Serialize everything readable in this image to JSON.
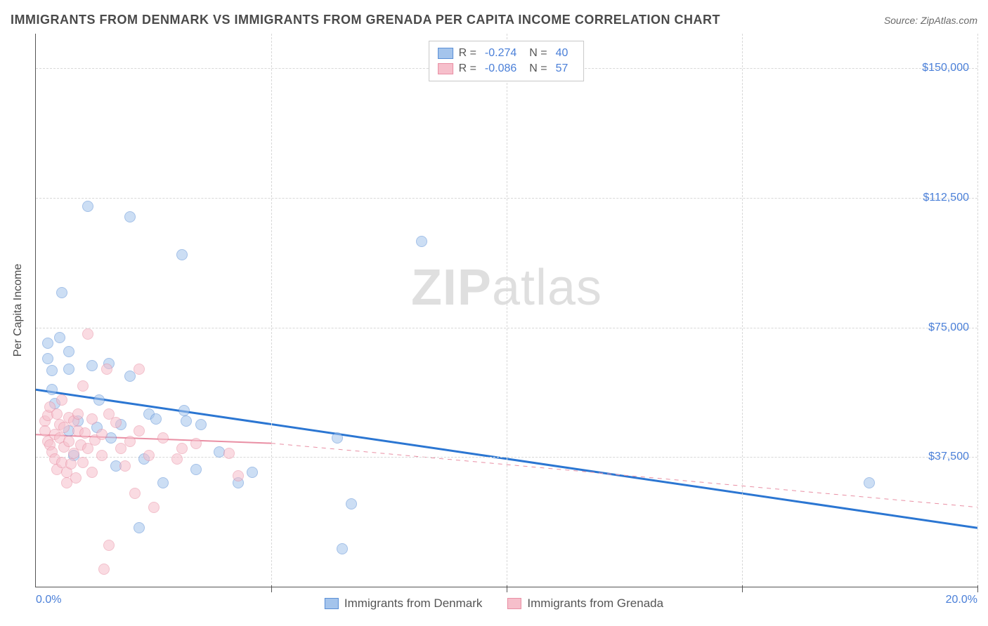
{
  "title": "IMMIGRANTS FROM DENMARK VS IMMIGRANTS FROM GRENADA PER CAPITA INCOME CORRELATION CHART",
  "source_label": "Source: ZipAtlas.com",
  "watermark": {
    "bold": "ZIP",
    "rest": "atlas"
  },
  "yaxis_title": "Per Capita Income",
  "chart": {
    "type": "scatter",
    "xlim": [
      0,
      20
    ],
    "ylim": [
      0,
      160000
    ],
    "x_tick_labels": {
      "left": "0.0%",
      "right": "20.0%"
    },
    "x_gridlines": [
      5,
      10,
      15,
      20
    ],
    "y_gridlines": [
      37500,
      75000,
      112500,
      150000
    ],
    "y_tick_labels": [
      "$37,500",
      "$75,000",
      "$112,500",
      "$150,000"
    ],
    "background_color": "#ffffff",
    "grid_color": "#d8d8d8",
    "axis_color": "#555555",
    "label_color": "#4a7fd8",
    "point_radius": 8,
    "point_opacity": 0.55,
    "series": [
      {
        "name": "Immigrants from Denmark",
        "fill_color": "#a4c4ec",
        "stroke_color": "#5b8fd6",
        "r_value": "-0.274",
        "n_value": "40",
        "trend": {
          "x1": 0,
          "y1": 57000,
          "x2": 20,
          "y2": 17000,
          "width": 3,
          "dash": "none",
          "color": "#2b76d2"
        },
        "points": [
          [
            0.25,
            70500
          ],
          [
            0.25,
            66000
          ],
          [
            0.35,
            62500
          ],
          [
            0.35,
            57000
          ],
          [
            0.4,
            53000
          ],
          [
            0.5,
            72000
          ],
          [
            0.55,
            85000
          ],
          [
            0.7,
            45000
          ],
          [
            0.7,
            63000
          ],
          [
            0.7,
            68000
          ],
          [
            0.8,
            38000
          ],
          [
            0.9,
            48000
          ],
          [
            1.1,
            110000
          ],
          [
            1.2,
            64000
          ],
          [
            1.3,
            46000
          ],
          [
            1.35,
            54000
          ],
          [
            1.55,
            64500
          ],
          [
            1.6,
            43000
          ],
          [
            1.7,
            35000
          ],
          [
            1.8,
            47000
          ],
          [
            2.0,
            107000
          ],
          [
            2.0,
            61000
          ],
          [
            2.2,
            17000
          ],
          [
            2.3,
            37000
          ],
          [
            2.4,
            50000
          ],
          [
            2.55,
            48500
          ],
          [
            2.7,
            30000
          ],
          [
            3.15,
            51000
          ],
          [
            3.1,
            96000
          ],
          [
            3.2,
            48000
          ],
          [
            3.4,
            34000
          ],
          [
            3.5,
            47000
          ],
          [
            3.9,
            39000
          ],
          [
            4.3,
            30000
          ],
          [
            4.6,
            33000
          ],
          [
            6.4,
            43000
          ],
          [
            6.5,
            11000
          ],
          [
            6.7,
            24000
          ],
          [
            8.2,
            100000
          ],
          [
            17.7,
            30000
          ]
        ]
      },
      {
        "name": "Immigrants from Grenada",
        "fill_color": "#f6bfcb",
        "stroke_color": "#e98fa4",
        "r_value": "-0.086",
        "n_value": "57",
        "trend": {
          "x1": 0,
          "y1": 44000,
          "x2": 5.0,
          "y2": 41500,
          "extend_x2": 20,
          "extend_y2": 23000,
          "width": 2,
          "dash_ext": "6,6",
          "color": "#e98fa4"
        },
        "points": [
          [
            0.2,
            48000
          ],
          [
            0.2,
            45000
          ],
          [
            0.25,
            42000
          ],
          [
            0.25,
            49500
          ],
          [
            0.3,
            41000
          ],
          [
            0.3,
            52000
          ],
          [
            0.35,
            39000
          ],
          [
            0.4,
            37000
          ],
          [
            0.4,
            44000
          ],
          [
            0.45,
            50000
          ],
          [
            0.45,
            34000
          ],
          [
            0.5,
            47000
          ],
          [
            0.5,
            43000
          ],
          [
            0.55,
            36000
          ],
          [
            0.55,
            54000
          ],
          [
            0.6,
            46000
          ],
          [
            0.6,
            40500
          ],
          [
            0.65,
            33000
          ],
          [
            0.65,
            30000
          ],
          [
            0.7,
            49000
          ],
          [
            0.7,
            42000
          ],
          [
            0.75,
            35500
          ],
          [
            0.8,
            48000
          ],
          [
            0.8,
            38500
          ],
          [
            0.85,
            31500
          ],
          [
            0.9,
            45000
          ],
          [
            0.9,
            50000
          ],
          [
            0.95,
            41000
          ],
          [
            1.0,
            58000
          ],
          [
            1.0,
            36000
          ],
          [
            1.05,
            44500
          ],
          [
            1.1,
            73000
          ],
          [
            1.1,
            40000
          ],
          [
            1.2,
            48500
          ],
          [
            1.2,
            33000
          ],
          [
            1.25,
            42500
          ],
          [
            1.4,
            38000
          ],
          [
            1.4,
            44000
          ],
          [
            1.45,
            5000
          ],
          [
            1.5,
            63000
          ],
          [
            1.55,
            50000
          ],
          [
            1.55,
            12000
          ],
          [
            1.7,
            47500
          ],
          [
            1.8,
            40000
          ],
          [
            1.9,
            35000
          ],
          [
            2.0,
            42000
          ],
          [
            2.1,
            27000
          ],
          [
            2.2,
            63000
          ],
          [
            2.2,
            45000
          ],
          [
            2.4,
            38000
          ],
          [
            2.5,
            23000
          ],
          [
            2.7,
            43000
          ],
          [
            3.0,
            37000
          ],
          [
            3.1,
            40000
          ],
          [
            3.4,
            41500
          ],
          [
            4.1,
            38500
          ],
          [
            4.3,
            32000
          ]
        ]
      }
    ]
  },
  "legend_top": {
    "rows": [
      {
        "swatch_fill": "#a4c4ec",
        "swatch_stroke": "#5b8fd6",
        "r_label": "R =",
        "r_value": "-0.274",
        "n_label": "N =",
        "n_value": "40"
      },
      {
        "swatch_fill": "#f6bfcb",
        "swatch_stroke": "#e98fa4",
        "r_label": "R =",
        "r_value": "-0.086",
        "n_label": "N =",
        "n_value": "57"
      }
    ]
  },
  "legend_bottom": {
    "items": [
      {
        "swatch_fill": "#a4c4ec",
        "swatch_stroke": "#5b8fd6",
        "label": "Immigrants from Denmark"
      },
      {
        "swatch_fill": "#f6bfcb",
        "swatch_stroke": "#e98fa4",
        "label": "Immigrants from Grenada"
      }
    ]
  }
}
